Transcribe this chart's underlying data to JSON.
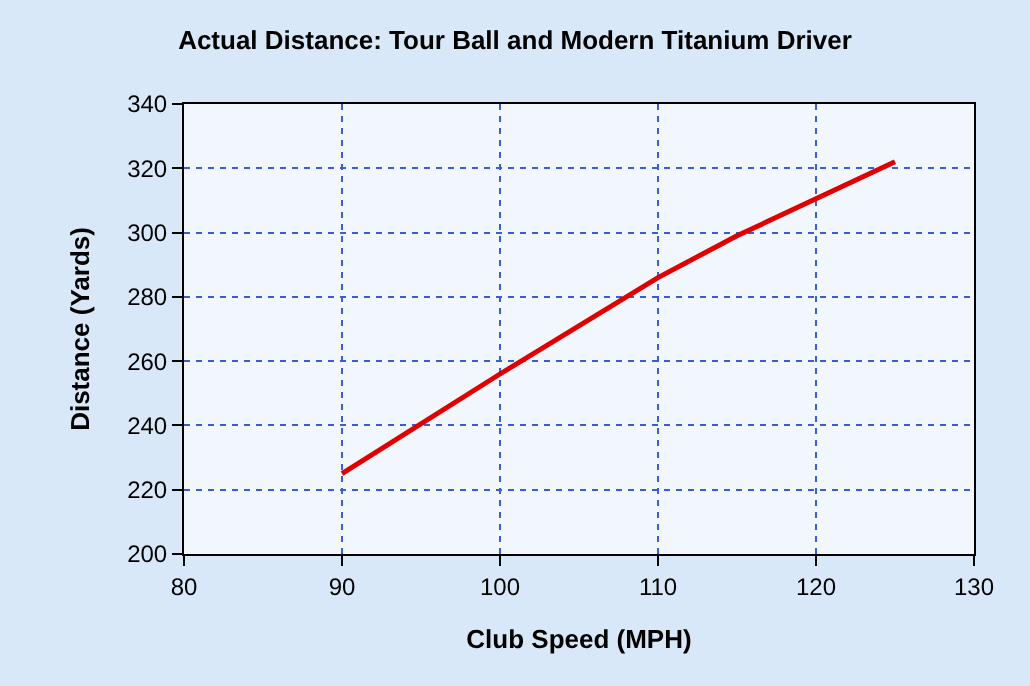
{
  "chart_data": {
    "type": "line",
    "title": "Actual Distance: Tour Ball and Modern Titanium Driver",
    "xlabel": "Club Speed (MPH)",
    "ylabel": "Distance (Yards)",
    "x": [
      90,
      100,
      110,
      115,
      125
    ],
    "series": [
      {
        "color": "#e00000",
        "values": [
          225,
          256,
          286,
          299,
          322
        ]
      }
    ],
    "xlim": [
      80,
      130
    ],
    "xticks": [
      80,
      90,
      100,
      110,
      120,
      130
    ],
    "ylim": [
      200,
      340
    ],
    "yticks": [
      200,
      220,
      240,
      260,
      280,
      300,
      320,
      340
    ],
    "grid": true,
    "legend": false,
    "marker": "none",
    "line_style": "solid"
  }
}
